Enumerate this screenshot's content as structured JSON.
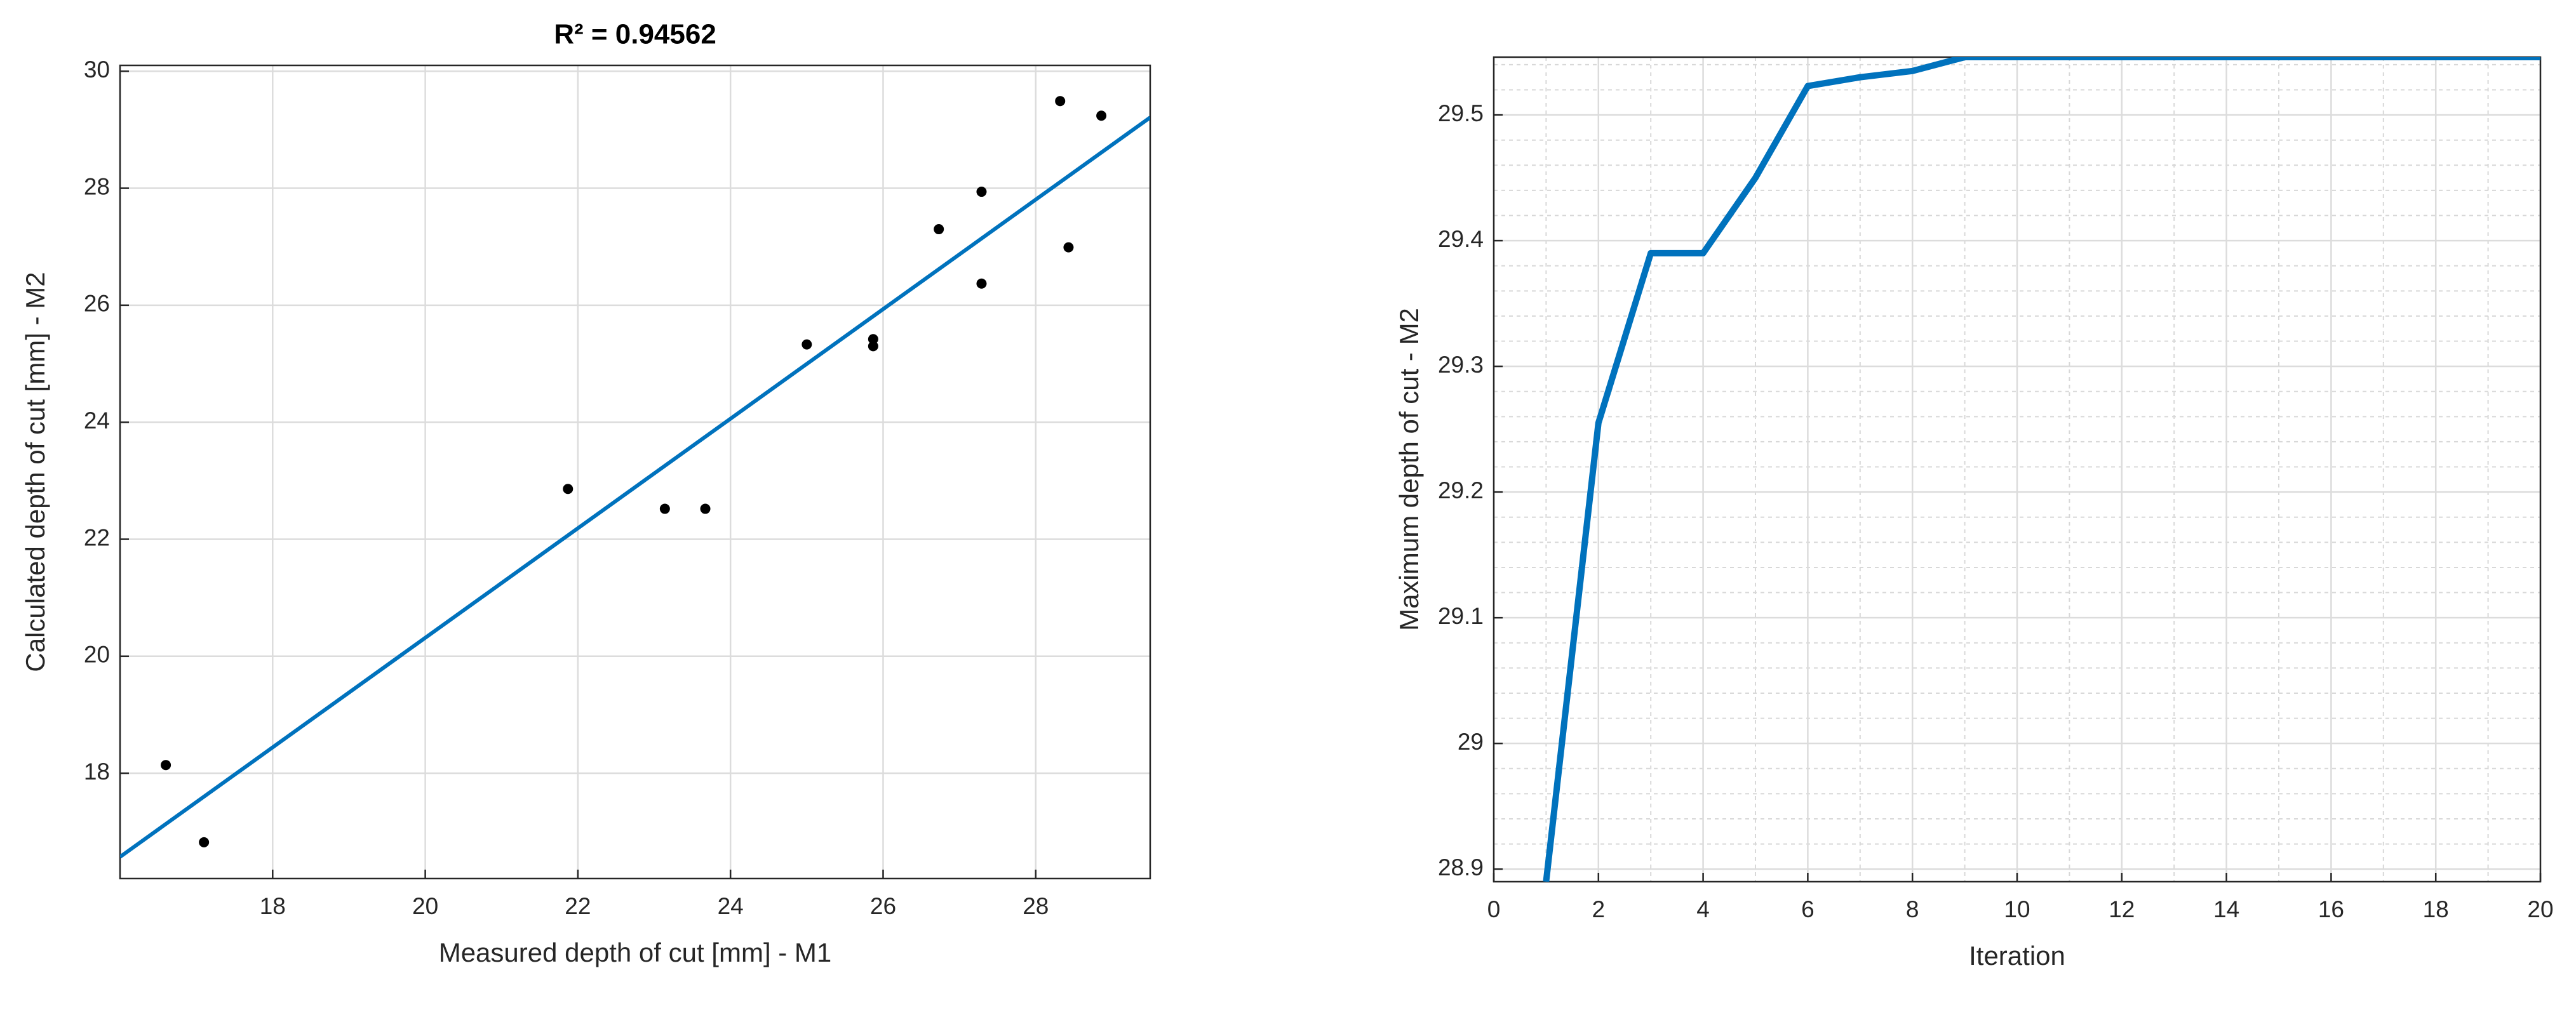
{
  "chart_data": [
    {
      "type": "scatter",
      "title": "R² = 0.94562",
      "x_label": "Measured depth of cut [mm] - M1",
      "y_label": "Calculated depth of cut [mm] - M2",
      "xlim": [
        16,
        29.5
      ],
      "ylim": [
        16.2,
        30.1
      ],
      "xticks": [
        18,
        20,
        22,
        24,
        26,
        28
      ],
      "yticks": [
        18,
        20,
        22,
        24,
        26,
        28,
        30
      ],
      "grid": true,
      "minor_grid": false,
      "series": [
        {
          "type": "scatter",
          "color": "#000000",
          "x": [
            16.6,
            17.1,
            21.87,
            23.14,
            23.67,
            25.0,
            25.87,
            25.87,
            26.73,
            27.29,
            27.29,
            28.32,
            28.43,
            28.86
          ],
          "values": [
            18.14,
            16.82,
            22.86,
            22.52,
            22.52,
            25.33,
            25.42,
            25.3,
            27.3,
            27.94,
            26.37,
            29.49,
            26.99,
            29.24
          ]
        },
        {
          "type": "line",
          "color": "#0072bd",
          "x": [
            16,
            29.5
          ],
          "values": [
            16.57,
            29.21
          ]
        }
      ]
    },
    {
      "type": "line",
      "x_label": "Iteration",
      "y_label": "Maximum depth of cut - M2",
      "xlim": [
        0,
        20
      ],
      "ylim": [
        28.89,
        29.546
      ],
      "xticks": [
        0,
        2,
        4,
        6,
        8,
        10,
        12,
        14,
        16,
        18,
        20
      ],
      "yticks": [
        28.9,
        29,
        29.1,
        29.2,
        29.3,
        29.4,
        29.5
      ],
      "grid": true,
      "minor_grid": true,
      "series": [
        {
          "type": "line",
          "color": "#0072bd",
          "x": [
            1,
            2,
            3,
            4,
            5,
            6,
            7,
            8,
            9,
            10,
            11,
            12,
            13,
            14,
            15,
            16,
            17,
            18,
            19,
            20
          ],
          "values": [
            28.89,
            29.255,
            29.39,
            29.39,
            29.45,
            29.523,
            29.53,
            29.535,
            29.546,
            29.546,
            29.546,
            29.546,
            29.546,
            29.546,
            29.546,
            29.546,
            29.546,
            29.546,
            29.546,
            29.546
          ]
        }
      ]
    }
  ]
}
